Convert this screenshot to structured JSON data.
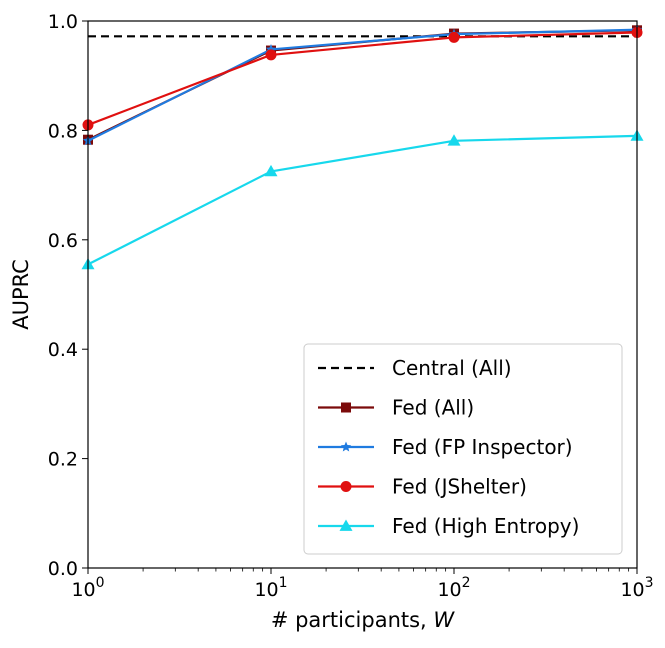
{
  "chart_data": {
    "type": "line",
    "title": "",
    "xlabel": "# participants, W",
    "xlabel_prefix": "# participants, ",
    "xlabel_var": "W",
    "ylabel": "AUPRC",
    "xscale": "log",
    "xlim": [
      1,
      1000
    ],
    "ylim": [
      0.0,
      1.0
    ],
    "x": [
      1,
      10,
      100,
      1000
    ],
    "xticks": [
      {
        "value": 1,
        "base": "10",
        "exp": "0"
      },
      {
        "value": 10,
        "base": "10",
        "exp": "1"
      },
      {
        "value": 100,
        "base": "10",
        "exp": "2"
      },
      {
        "value": 1000,
        "base": "10",
        "exp": "3"
      }
    ],
    "yticks": [
      {
        "value": 0.0,
        "label": "0.0"
      },
      {
        "value": 0.2,
        "label": "0.2"
      },
      {
        "value": 0.4,
        "label": "0.4"
      },
      {
        "value": 0.6,
        "label": "0.6"
      },
      {
        "value": 0.8,
        "label": "0.8"
      },
      {
        "value": 1.0,
        "label": "1.0"
      }
    ],
    "grid": false,
    "legend_position": "bottom-right",
    "series": [
      {
        "name": "Central (All)",
        "kind": "hline",
        "value": 0.972,
        "color": "#000000",
        "dashed": true,
        "marker": "none"
      },
      {
        "name": "Fed (All)",
        "values": [
          0.783,
          0.946,
          0.977,
          0.983
        ],
        "color": "#7b0a0a",
        "marker": "square"
      },
      {
        "name": "Fed (FP Inspector)",
        "values": [
          0.781,
          0.948,
          0.976,
          0.984
        ],
        "color": "#1f7be0",
        "marker": "star"
      },
      {
        "name": "Fed (JShelter)",
        "values": [
          0.81,
          0.938,
          0.97,
          0.979
        ],
        "color": "#e01010",
        "marker": "circle"
      },
      {
        "name": "Fed (High Entropy)",
        "values": [
          0.555,
          0.725,
          0.781,
          0.79
        ],
        "color": "#17d8ec",
        "marker": "triangle"
      }
    ]
  }
}
